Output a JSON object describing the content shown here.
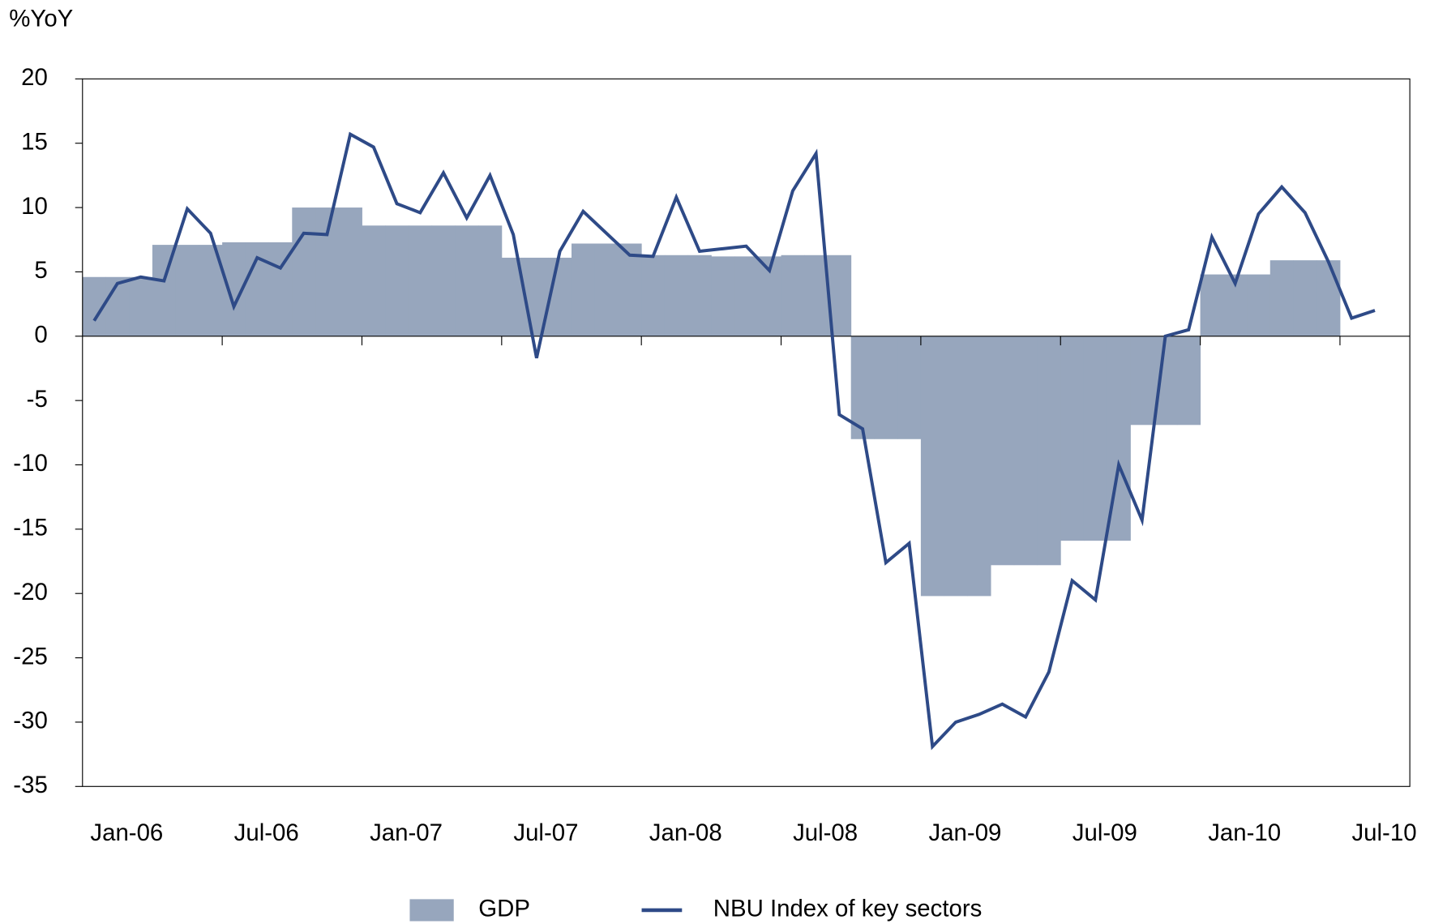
{
  "chart_data": {
    "type": "bar-line",
    "y_axis_label": "%YoY",
    "categories": [
      "Jan-06",
      null,
      null,
      null,
      null,
      null,
      "Jul-06",
      null,
      null,
      null,
      null,
      null,
      "Jan-07",
      null,
      null,
      null,
      null,
      null,
      "Jul-07",
      null,
      null,
      null,
      null,
      null,
      "Jan-08",
      null,
      null,
      null,
      null,
      null,
      "Jul-08",
      null,
      null,
      null,
      null,
      null,
      "Jan-09",
      null,
      null,
      null,
      null,
      null,
      "Jul-09",
      null,
      null,
      null,
      null,
      null,
      "Jan-10",
      null,
      null,
      null,
      null,
      null,
      "Jul-10",
      null,
      null
    ],
    "series": [
      {
        "name": "GDP",
        "type": "bar",
        "color": "#97a6bd",
        "values": [
          4.6,
          4.6,
          4.6,
          7.1,
          7.1,
          7.1,
          7.3,
          7.3,
          7.3,
          10.0,
          10.0,
          10.0,
          8.6,
          8.6,
          8.6,
          8.6,
          8.6,
          8.6,
          6.1,
          6.1,
          6.1,
          7.2,
          7.2,
          7.2,
          6.3,
          6.3,
          6.3,
          6.2,
          6.2,
          6.2,
          6.3,
          6.3,
          6.3,
          -8.0,
          -8.0,
          -8.0,
          -20.2,
          -20.2,
          -20.2,
          -17.8,
          -17.8,
          -17.8,
          -15.9,
          -15.9,
          -15.9,
          -6.9,
          -6.9,
          -6.9,
          4.8,
          4.8,
          4.8,
          5.9,
          5.9,
          5.9,
          null,
          null,
          null
        ]
      },
      {
        "name": "NBU Index of key sectors",
        "type": "line",
        "color": "#2e4a87",
        "values": [
          1.2,
          4.1,
          4.6,
          4.3,
          9.9,
          8.0,
          2.3,
          6.1,
          5.3,
          8.0,
          7.9,
          15.7,
          14.7,
          10.3,
          9.6,
          12.7,
          9.2,
          12.5,
          7.9,
          -1.7,
          6.6,
          9.7,
          8.0,
          6.3,
          6.2,
          10.8,
          6.6,
          6.8,
          7.0,
          5.1,
          11.3,
          14.2,
          -6.1,
          -7.2,
          -17.6,
          -16.1,
          -31.9,
          -30.0,
          -29.4,
          -28.6,
          -29.6,
          -26.1,
          -19.0,
          -20.5,
          -10.0,
          -14.3,
          0.0,
          0.5,
          7.7,
          4.1,
          9.5,
          11.6,
          9.6,
          5.8,
          1.4,
          2.0,
          null
        ]
      }
    ],
    "ylim": [
      -35,
      20
    ],
    "yticks": [
      -35,
      -30,
      -25,
      -20,
      -15,
      -10,
      -5,
      0,
      5,
      10,
      15,
      20
    ],
    "grid": false,
    "legend": "bottom"
  }
}
